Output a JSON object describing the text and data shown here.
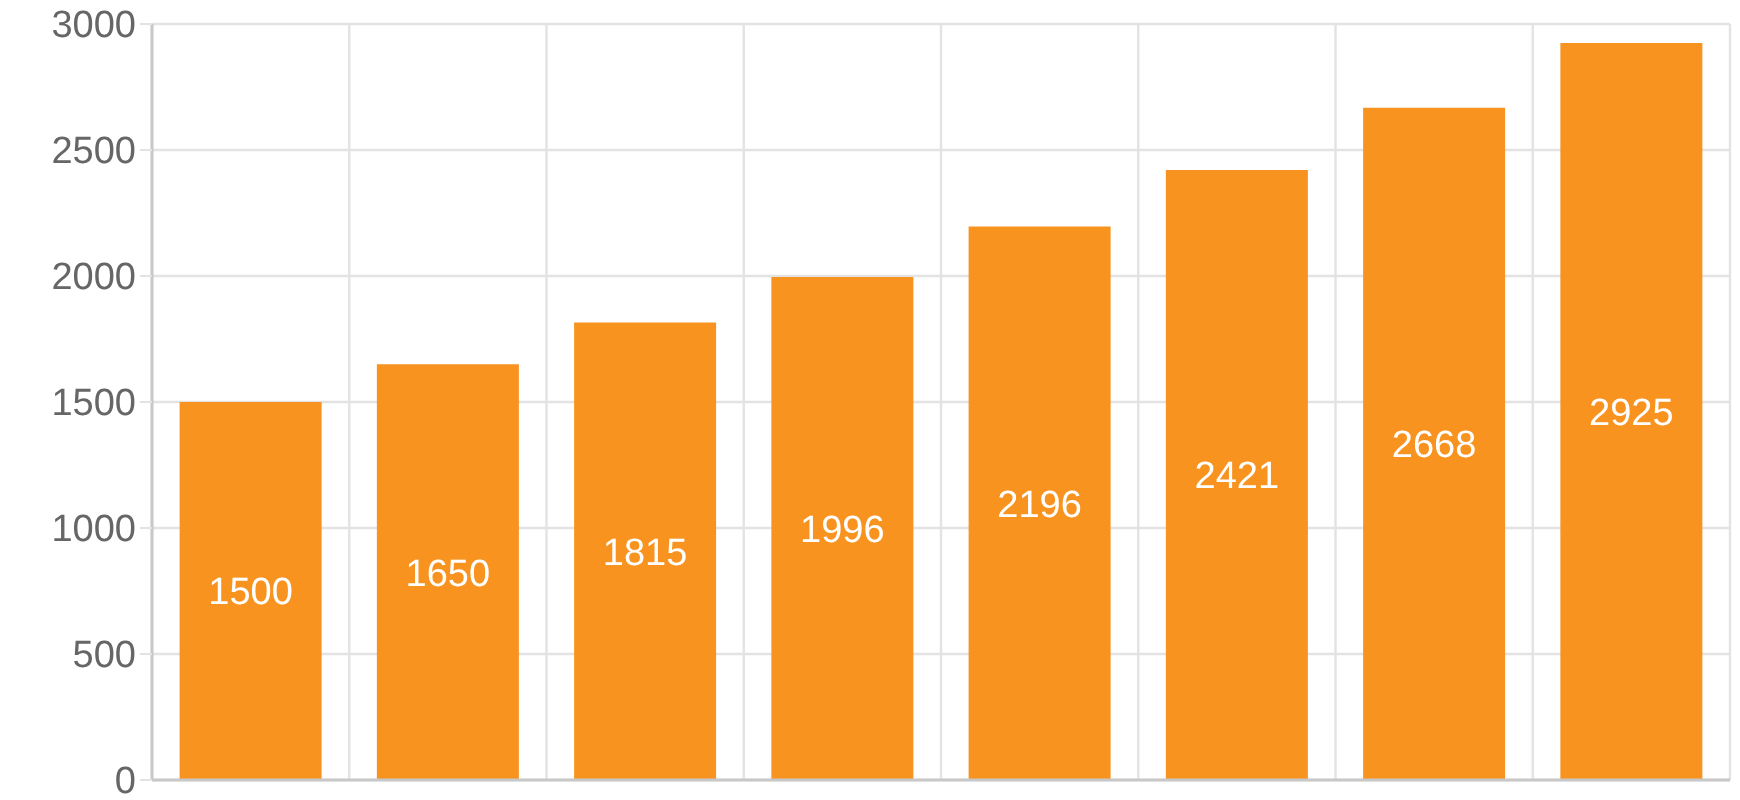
{
  "chart_data": {
    "type": "bar",
    "categories": [
      null,
      null,
      null,
      null,
      null,
      null,
      null,
      null
    ],
    "values": [
      1500,
      1650,
      1815,
      1996,
      2196,
      2421,
      2668,
      2925
    ],
    "color": "#f7931e",
    "ylim": [
      0,
      3000
    ],
    "yticks": [
      0,
      500,
      1000,
      1500,
      2000,
      2500,
      3000
    ],
    "grid": true,
    "data_labels": true,
    "tick_labels": "y"
  }
}
